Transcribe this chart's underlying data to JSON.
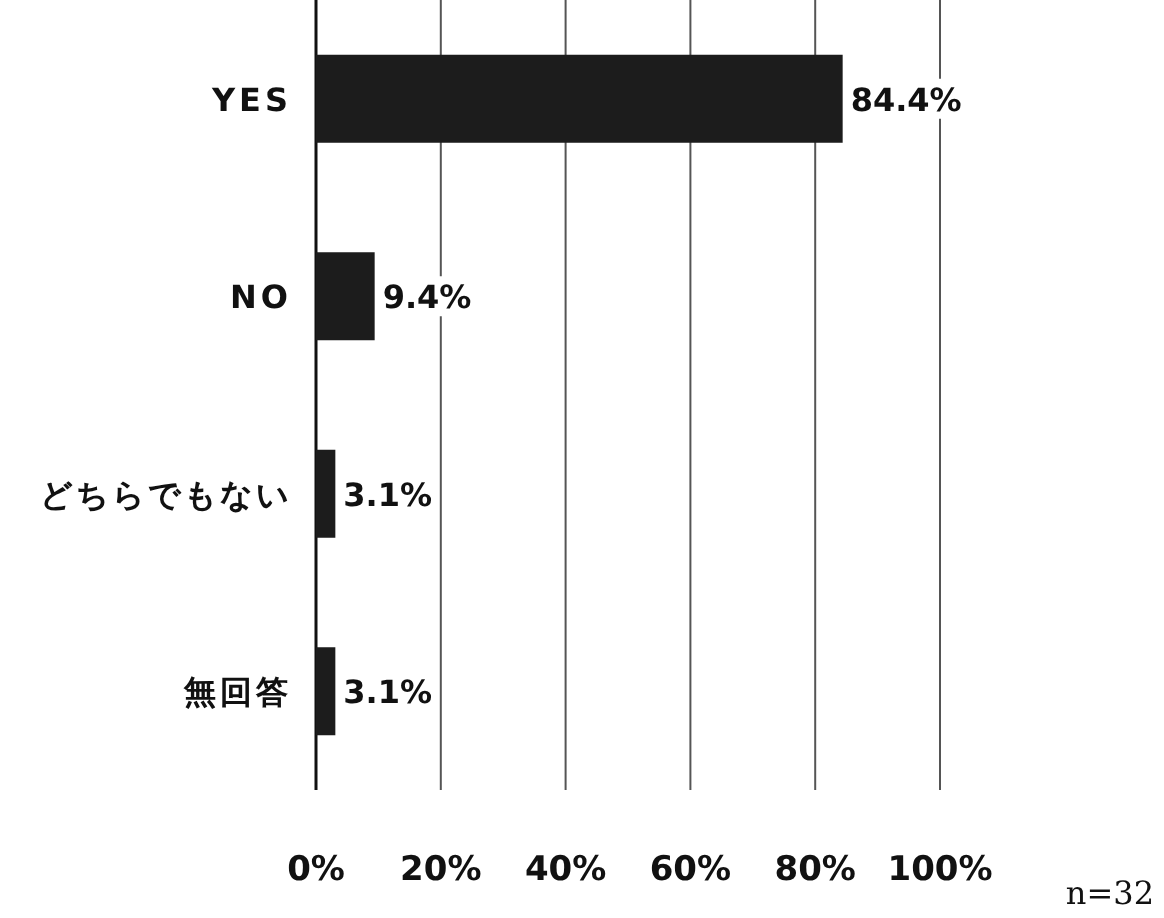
{
  "chart_data": {
    "type": "bar",
    "orientation": "horizontal",
    "categories": [
      "YES",
      "NO",
      "どちらでもない",
      "無回答"
    ],
    "values": [
      84.4,
      9.4,
      3.1,
      3.1
    ],
    "value_labels": [
      "84.4%",
      "9.4%",
      "3.1%",
      "3.1%"
    ],
    "color": "#1c1c1c",
    "xlim": [
      0,
      100
    ],
    "xticks": [
      {
        "value": 0,
        "label": "0%"
      },
      {
        "value": 20,
        "label": "20%"
      },
      {
        "value": 40,
        "label": "40%"
      },
      {
        "value": 60,
        "label": "60%"
      },
      {
        "value": 80,
        "label": "80%"
      },
      {
        "value": 100,
        "label": "100%"
      }
    ],
    "grid": "x",
    "annotations": [
      "n=32"
    ]
  }
}
